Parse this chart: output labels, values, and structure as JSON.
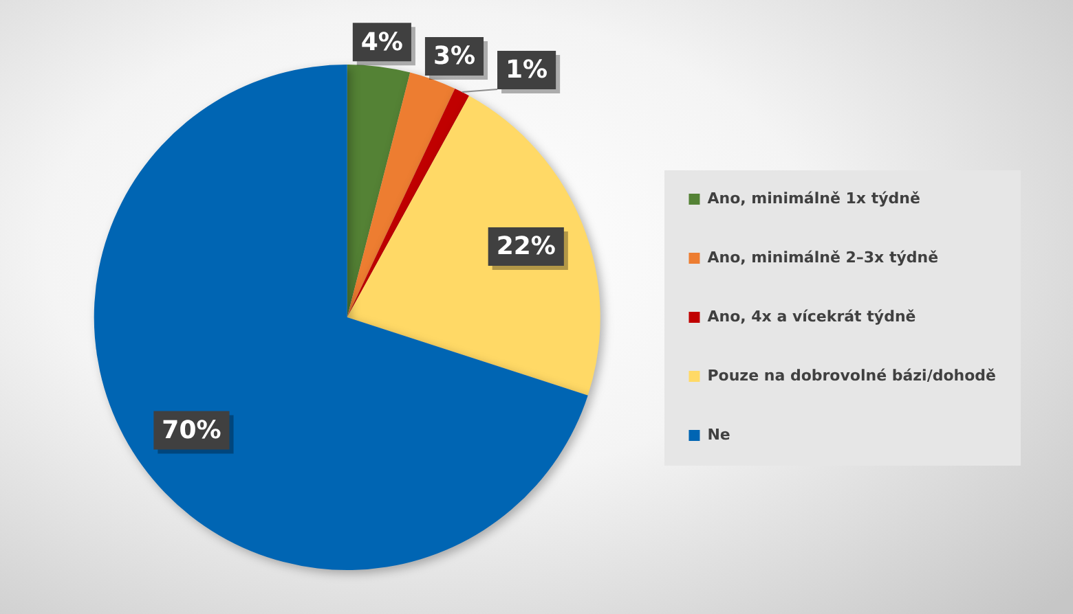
{
  "chart_data": {
    "type": "pie",
    "categories": [
      "Ano, minimálně 1x týdně",
      "Ano, minimálně 2–3x týdně",
      "Ano, 4x a vícekrát týdně",
      "Pouze na dobrovolné bázi/dohodě",
      "Ne"
    ],
    "values": [
      4,
      3,
      1,
      22,
      70
    ],
    "colors": [
      "#548235",
      "#ed7d31",
      "#c00000",
      "#ffd966",
      "#0065b3"
    ],
    "value_labels": [
      "4%",
      "3%",
      "1%",
      "22%",
      "70%"
    ],
    "legend": "right"
  }
}
